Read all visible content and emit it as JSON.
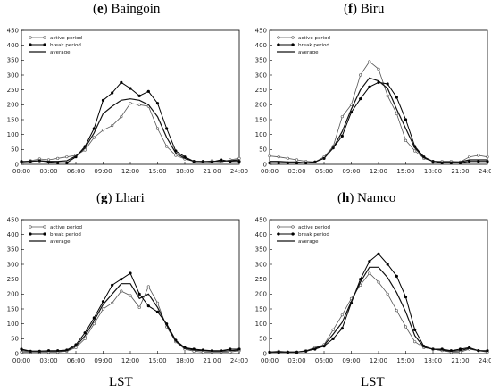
{
  "panels": [
    {
      "letter": "e",
      "name": "Baingoin"
    },
    {
      "letter": "f",
      "name": "Biru"
    },
    {
      "letter": "g",
      "name": "Lhari"
    },
    {
      "letter": "h",
      "name": "Namco"
    }
  ],
  "footer": {
    "left_label": "LST",
    "right_label": "LST"
  },
  "chart_data": [
    {
      "type": "line",
      "title": "(e) Baingoin",
      "xlabel": "",
      "ylabel": "",
      "xticks": [
        "00:00",
        "03:00",
        "06:00",
        "09:00",
        "12:00",
        "15:00",
        "18:00",
        "21:00",
        "24:00"
      ],
      "xlim": [
        0,
        24
      ],
      "yticks": [
        0,
        50,
        100,
        150,
        200,
        250,
        300,
        350,
        400,
        450
      ],
      "ylim": [
        0,
        450
      ],
      "legend": {
        "position": "top-left",
        "entries": [
          "active period",
          "break period",
          "average"
        ]
      },
      "x": [
        0,
        1,
        2,
        3,
        4,
        5,
        6,
        7,
        8,
        9,
        10,
        11,
        12,
        13,
        14,
        15,
        16,
        17,
        18,
        19,
        20,
        21,
        22,
        23,
        24
      ],
      "series": [
        {
          "name": "active period",
          "marker": "open-circle",
          "values": [
            8,
            12,
            18,
            15,
            20,
            25,
            30,
            48,
            90,
            115,
            130,
            160,
            205,
            200,
            195,
            120,
            60,
            30,
            18,
            10,
            8,
            12,
            8,
            15,
            20
          ]
        },
        {
          "name": "break period",
          "marker": "filled-circle",
          "values": [
            10,
            10,
            12,
            8,
            5,
            5,
            25,
            60,
            120,
            215,
            240,
            275,
            255,
            230,
            245,
            205,
            120,
            45,
            25,
            10,
            10,
            8,
            15,
            10,
            10
          ]
        },
        {
          "name": "average",
          "marker": "none",
          "values": [
            8,
            10,
            12,
            10,
            10,
            12,
            28,
            55,
            105,
            170,
            195,
            215,
            220,
            215,
            200,
            160,
            90,
            38,
            20,
            10,
            9,
            10,
            10,
            12,
            15
          ]
        }
      ]
    },
    {
      "type": "line",
      "title": "(f) Biru",
      "xlabel": "",
      "ylabel": "",
      "xticks": [
        "00:00",
        "03:00",
        "06:00",
        "09:00",
        "12:00",
        "15:00",
        "18:00",
        "21:00",
        "24:00"
      ],
      "xlim": [
        0,
        24
      ],
      "yticks": [
        0,
        50,
        100,
        150,
        200,
        250,
        300,
        350,
        400,
        450
      ],
      "ylim": [
        0,
        450
      ],
      "legend": {
        "position": "top-left",
        "entries": [
          "active period",
          "break period",
          "average"
        ]
      },
      "x": [
        0,
        1,
        2,
        3,
        4,
        5,
        6,
        7,
        8,
        9,
        10,
        11,
        12,
        13,
        14,
        15,
        16,
        17,
        18,
        19,
        20,
        21,
        22,
        23,
        24
      ],
      "series": [
        {
          "name": "active period",
          "marker": "open-circle",
          "values": [
            28,
            25,
            20,
            15,
            10,
            8,
            25,
            60,
            160,
            200,
            300,
            345,
            320,
            230,
            170,
            80,
            45,
            20,
            10,
            10,
            10,
            8,
            25,
            30,
            25
          ]
        },
        {
          "name": "break period",
          "marker": "filled-circle",
          "values": [
            5,
            5,
            5,
            5,
            5,
            8,
            20,
            55,
            95,
            175,
            220,
            260,
            275,
            270,
            225,
            150,
            60,
            25,
            10,
            5,
            5,
            5,
            10,
            10,
            10
          ]
        },
        {
          "name": "average",
          "marker": "none",
          "values": [
            10,
            10,
            8,
            8,
            5,
            8,
            20,
            55,
            110,
            185,
            250,
            290,
            280,
            255,
            185,
            120,
            55,
            22,
            10,
            8,
            8,
            8,
            15,
            15,
            15
          ]
        }
      ]
    },
    {
      "type": "line",
      "title": "(g) Lhari",
      "xlabel": "",
      "ylabel": "",
      "xticks": [
        "00:00",
        "03:00",
        "06:00",
        "09:00",
        "12:00",
        "15:00",
        "18:00",
        "21:00",
        "24:00"
      ],
      "xlim": [
        0,
        24
      ],
      "yticks": [
        0,
        50,
        100,
        150,
        200,
        250,
        300,
        350,
        400,
        450
      ],
      "ylim": [
        0,
        450
      ],
      "legend": {
        "position": "top-left",
        "entries": [
          "active period",
          "break period",
          "average"
        ]
      },
      "x": [
        0,
        1,
        2,
        3,
        4,
        5,
        6,
        7,
        8,
        9,
        10,
        11,
        12,
        13,
        14,
        15,
        16,
        17,
        18,
        19,
        20,
        21,
        22,
        23,
        24
      ],
      "series": [
        {
          "name": "active period",
          "marker": "open-circle",
          "values": [
            5,
            5,
            5,
            5,
            5,
            8,
            20,
            50,
            100,
            150,
            170,
            210,
            195,
            155,
            225,
            170,
            90,
            40,
            15,
            8,
            5,
            5,
            5,
            5,
            10
          ]
        },
        {
          "name": "break period",
          "marker": "filled-circle",
          "values": [
            15,
            8,
            8,
            10,
            10,
            12,
            30,
            70,
            120,
            175,
            230,
            250,
            270,
            200,
            160,
            140,
            100,
            45,
            20,
            15,
            12,
            10,
            10,
            15,
            15
          ]
        },
        {
          "name": "average",
          "marker": "none",
          "values": [
            10,
            8,
            8,
            8,
            8,
            10,
            25,
            60,
            110,
            165,
            200,
            235,
            235,
            185,
            200,
            155,
            95,
            42,
            18,
            12,
            10,
            8,
            8,
            10,
            12
          ]
        }
      ]
    },
    {
      "type": "line",
      "title": "(h) Namco",
      "xlabel": "",
      "ylabel": "",
      "xticks": [
        "00:00",
        "03:00",
        "06:00",
        "09:00",
        "12:00",
        "15:00",
        "18:00",
        "21:00",
        "24:00"
      ],
      "xlim": [
        0,
        24
      ],
      "yticks": [
        0,
        50,
        100,
        150,
        200,
        250,
        300,
        350,
        400,
        450
      ],
      "ylim": [
        0,
        450
      ],
      "legend": {
        "position": "top-left",
        "entries": [
          "active period",
          "break period",
          "average"
        ]
      },
      "x": [
        0,
        1,
        2,
        3,
        4,
        5,
        6,
        7,
        8,
        9,
        10,
        11,
        12,
        13,
        14,
        15,
        16,
        17,
        18,
        19,
        20,
        21,
        22,
        23,
        24
      ],
      "series": [
        {
          "name": "active period",
          "marker": "open-circle",
          "values": [
            5,
            8,
            5,
            5,
            10,
            20,
            30,
            80,
            130,
            185,
            230,
            270,
            240,
            200,
            145,
            90,
            40,
            20,
            15,
            10,
            5,
            5,
            15,
            10,
            5
          ]
        },
        {
          "name": "break period",
          "marker": "filled-circle",
          "values": [
            5,
            5,
            5,
            5,
            8,
            15,
            25,
            50,
            85,
            170,
            250,
            310,
            335,
            300,
            260,
            190,
            80,
            25,
            15,
            15,
            10,
            15,
            20,
            10,
            10
          ]
        },
        {
          "name": "average",
          "marker": "none",
          "values": [
            5,
            5,
            5,
            5,
            8,
            18,
            28,
            65,
            105,
            175,
            240,
            290,
            290,
            255,
            205,
            140,
            60,
            22,
            15,
            12,
            8,
            10,
            18,
            10,
            8
          ]
        }
      ]
    }
  ]
}
